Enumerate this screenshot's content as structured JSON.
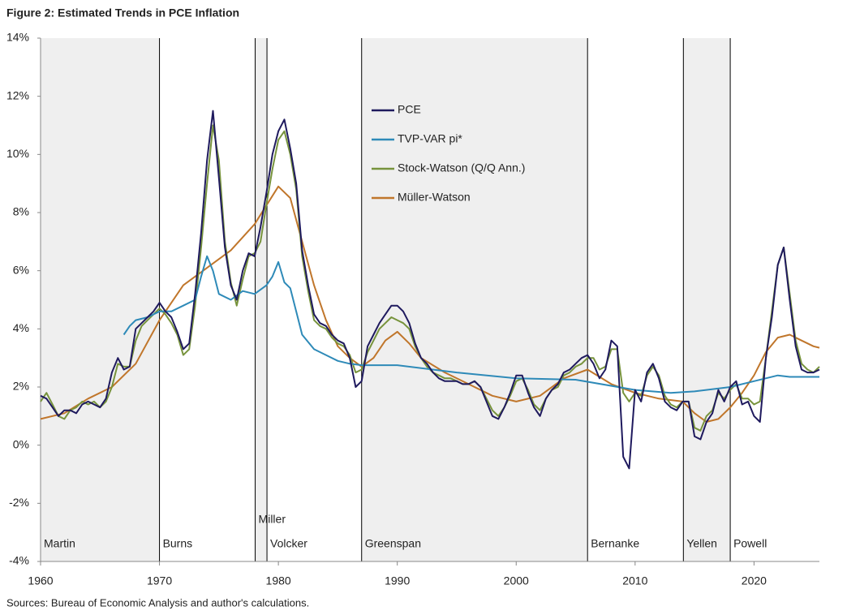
{
  "chart_data": {
    "type": "line",
    "title": "Figure 2: Estimated Trends in PCE Inflation",
    "source": "Sources: Bureau of Economic Analysis and author's calculations.",
    "xlim": [
      1960,
      2025.5
    ],
    "xticks": [
      1960,
      1970,
      1980,
      1990,
      2000,
      2010,
      2020
    ],
    "ylim": [
      -4,
      14
    ],
    "yticks": [
      {
        "value": -4,
        "label": "-4%"
      },
      {
        "value": -2,
        "label": "-2%"
      },
      {
        "value": 0,
        "label": "0%"
      },
      {
        "value": 2,
        "label": "2%"
      },
      {
        "value": 4,
        "label": "4%"
      },
      {
        "value": 6,
        "label": "6%"
      },
      {
        "value": 8,
        "label": "8%"
      },
      {
        "value": 10,
        "label": "10%"
      },
      {
        "value": 12,
        "label": "12%"
      },
      {
        "value": 14,
        "label": "14%"
      }
    ],
    "legend": "upper-center",
    "eras": [
      {
        "name": "Martin",
        "start": 1960,
        "end": 1970,
        "shaded": true
      },
      {
        "name": "Burns",
        "start": 1970,
        "end": 1978.05,
        "shaded": false
      },
      {
        "name": "Miller",
        "start": 1978.05,
        "end": 1979.04,
        "shaded": true
      },
      {
        "name": "Volcker",
        "start": 1979.04,
        "end": 1987.0,
        "shaded": false
      },
      {
        "name": "Greenspan",
        "start": 1987.0,
        "end": 2006.0,
        "shaded": true
      },
      {
        "name": "Bernanke",
        "start": 2006.0,
        "end": 2014.06,
        "shaded": false
      },
      {
        "name": "Yellen",
        "start": 2014.06,
        "end": 2018.0,
        "shaded": true
      },
      {
        "name": "Powell",
        "start": 2018.0,
        "end": 2025.5,
        "shaded": false
      }
    ],
    "x": [
      1960,
      1960.5,
      1961,
      1961.5,
      1962,
      1962.5,
      1963,
      1963.5,
      1964,
      1964.5,
      1965,
      1965.5,
      1966,
      1966.5,
      1967,
      1967.5,
      1968,
      1968.5,
      1969,
      1969.5,
      1970,
      1970.5,
      1971,
      1971.5,
      1972,
      1972.5,
      1973,
      1973.5,
      1974,
      1974.5,
      1975,
      1975.5,
      1976,
      1976.5,
      1977,
      1977.5,
      1978,
      1978.5,
      1979,
      1979.5,
      1980,
      1980.5,
      1981,
      1981.5,
      1982,
      1982.5,
      1983,
      1983.5,
      1984,
      1984.5,
      1985,
      1985.5,
      1986,
      1986.5,
      1987,
      1987.5,
      1988,
      1988.5,
      1989,
      1989.5,
      1990,
      1990.5,
      1991,
      1991.5,
      1992,
      1992.5,
      1993,
      1993.5,
      1994,
      1994.5,
      1995,
      1995.5,
      1996,
      1996.5,
      1997,
      1997.5,
      1998,
      1998.5,
      1999,
      1999.5,
      2000,
      2000.5,
      2001,
      2001.5,
      2002,
      2002.5,
      2003,
      2003.5,
      2004,
      2004.5,
      2005,
      2005.5,
      2006,
      2006.5,
      2007,
      2007.5,
      2008,
      2008.5,
      2009,
      2009.5,
      2010,
      2010.5,
      2011,
      2011.5,
      2012,
      2012.5,
      2013,
      2013.5,
      2014,
      2014.5,
      2015,
      2015.5,
      2016,
      2016.5,
      2017,
      2017.5,
      2018,
      2018.5,
      2019,
      2019.5,
      2020,
      2020.5,
      2021,
      2021.5,
      2022,
      2022.5,
      2023,
      2023.5,
      2024,
      2024.5,
      2025,
      2025.5
    ],
    "series": [
      {
        "name": "PCE",
        "color": "#1f1a5e",
        "values": [
          1.7,
          1.6,
          1.3,
          1.0,
          1.2,
          1.2,
          1.1,
          1.4,
          1.5,
          1.4,
          1.3,
          1.6,
          2.5,
          3.0,
          2.6,
          2.7,
          4.0,
          4.2,
          4.4,
          4.6,
          4.9,
          4.6,
          4.4,
          3.9,
          3.3,
          3.5,
          5.2,
          7.3,
          9.8,
          11.5,
          9.2,
          6.8,
          5.5,
          5.0,
          6.0,
          6.6,
          6.5,
          7.5,
          8.7,
          10.0,
          10.8,
          11.2,
          10.2,
          9.0,
          6.7,
          5.5,
          4.5,
          4.2,
          4.1,
          3.8,
          3.6,
          3.5,
          3.0,
          2.0,
          2.2,
          3.4,
          3.8,
          4.2,
          4.5,
          4.8,
          4.8,
          4.6,
          4.2,
          3.5,
          3.0,
          2.8,
          2.5,
          2.3,
          2.2,
          2.2,
          2.2,
          2.1,
          2.1,
          2.2,
          2.0,
          1.5,
          1.0,
          0.9,
          1.3,
          1.8,
          2.4,
          2.4,
          1.8,
          1.3,
          1.0,
          1.6,
          1.9,
          2.1,
          2.5,
          2.6,
          2.8,
          3.0,
          3.1,
          2.8,
          2.3,
          2.6,
          3.6,
          3.4,
          -0.4,
          -0.8,
          1.9,
          1.5,
          2.5,
          2.8,
          2.3,
          1.5,
          1.3,
          1.2,
          1.5,
          1.5,
          0.3,
          0.2,
          0.8,
          1.1,
          1.9,
          1.5,
          2.0,
          2.2,
          1.4,
          1.5,
          1.0,
          0.8,
          3.0,
          4.4,
          6.2,
          6.8,
          5.0,
          3.4,
          2.6,
          2.5,
          2.5,
          2.6
        ]
      },
      {
        "name": "TVP-VAR pi*",
        "color": "#2e8ab8",
        "x": [
          1967,
          1967.5,
          1968,
          1969,
          1970,
          1971,
          1972,
          1973,
          1973.5,
          1974,
          1974.5,
          1975,
          1976,
          1977,
          1978,
          1979,
          1979.5,
          1980,
          1980.5,
          1981,
          1981.5,
          1982,
          1983,
          1984,
          1985,
          1986,
          1987,
          1990,
          1995,
          2000,
          2005,
          2010,
          2013,
          2015,
          2018,
          2020,
          2022,
          2023,
          2025.5
        ],
        "values": [
          3.8,
          4.1,
          4.3,
          4.4,
          4.6,
          4.6,
          4.8,
          5.0,
          5.8,
          6.5,
          6.0,
          5.2,
          5.0,
          5.3,
          5.2,
          5.5,
          5.8,
          6.3,
          5.6,
          5.4,
          4.6,
          3.8,
          3.3,
          3.1,
          2.9,
          2.8,
          2.75,
          2.75,
          2.5,
          2.3,
          2.25,
          1.9,
          1.8,
          1.85,
          2.0,
          2.2,
          2.4,
          2.35,
          2.35
        ]
      },
      {
        "name": "Stock-Watson (Q/Q Ann.)",
        "color": "#77933c",
        "values": [
          1.5,
          1.8,
          1.4,
          1.0,
          0.9,
          1.2,
          1.3,
          1.5,
          1.4,
          1.5,
          1.3,
          1.5,
          2.0,
          2.8,
          2.7,
          2.7,
          3.6,
          4.1,
          4.3,
          4.5,
          4.7,
          4.5,
          4.2,
          3.8,
          3.1,
          3.3,
          4.8,
          6.8,
          9.0,
          11.0,
          9.8,
          7.0,
          5.6,
          4.8,
          5.7,
          6.5,
          6.6,
          7.0,
          8.3,
          9.5,
          10.5,
          10.8,
          10.0,
          8.8,
          6.5,
          5.3,
          4.3,
          4.1,
          4.0,
          3.7,
          3.5,
          3.4,
          3.1,
          2.5,
          2.6,
          3.2,
          3.6,
          4.0,
          4.2,
          4.4,
          4.3,
          4.2,
          4.0,
          3.4,
          3.0,
          2.7,
          2.5,
          2.4,
          2.3,
          2.3,
          2.2,
          2.1,
          2.1,
          2.2,
          2.0,
          1.6,
          1.2,
          1.0,
          1.3,
          1.7,
          2.2,
          2.3,
          1.9,
          1.4,
          1.2,
          1.6,
          1.9,
          2.0,
          2.4,
          2.5,
          2.7,
          2.8,
          3.0,
          3.0,
          2.6,
          2.7,
          3.3,
          3.3,
          1.8,
          1.5,
          1.8,
          1.7,
          2.4,
          2.7,
          2.4,
          1.7,
          1.4,
          1.3,
          1.5,
          1.5,
          0.6,
          0.5,
          1.0,
          1.2,
          1.8,
          1.6,
          1.9,
          2.1,
          1.6,
          1.6,
          1.4,
          1.5,
          3.0,
          4.6,
          6.2,
          6.8,
          5.2,
          3.6,
          2.8,
          2.6,
          2.5,
          2.7
        ]
      },
      {
        "name": "Müller-Watson",
        "color": "#c0762b",
        "x": [
          1960,
          1962,
          1964,
          1966,
          1968,
          1970,
          1972,
          1974,
          1976,
          1978,
          1980,
          1981,
          1982,
          1983,
          1984,
          1985,
          1986,
          1987,
          1988,
          1989,
          1990,
          1991,
          1992,
          1994,
          1996,
          1998,
          2000,
          2002,
          2004,
          2006,
          2008,
          2010,
          2012,
          2014,
          2015,
          2016,
          2017,
          2018,
          2019,
          2020,
          2021,
          2022,
          2023,
          2024,
          2025,
          2025.5
        ],
        "values": [
          0.9,
          1.1,
          1.6,
          2.0,
          2.8,
          4.3,
          5.5,
          6.1,
          6.7,
          7.6,
          8.9,
          8.5,
          7.0,
          5.5,
          4.3,
          3.4,
          3.0,
          2.7,
          3.0,
          3.6,
          3.9,
          3.5,
          3.0,
          2.5,
          2.1,
          1.7,
          1.5,
          1.7,
          2.3,
          2.6,
          2.1,
          1.8,
          1.6,
          1.5,
          1.1,
          0.8,
          0.9,
          1.3,
          1.8,
          2.4,
          3.2,
          3.7,
          3.8,
          3.6,
          3.4,
          3.35
        ]
      }
    ]
  }
}
